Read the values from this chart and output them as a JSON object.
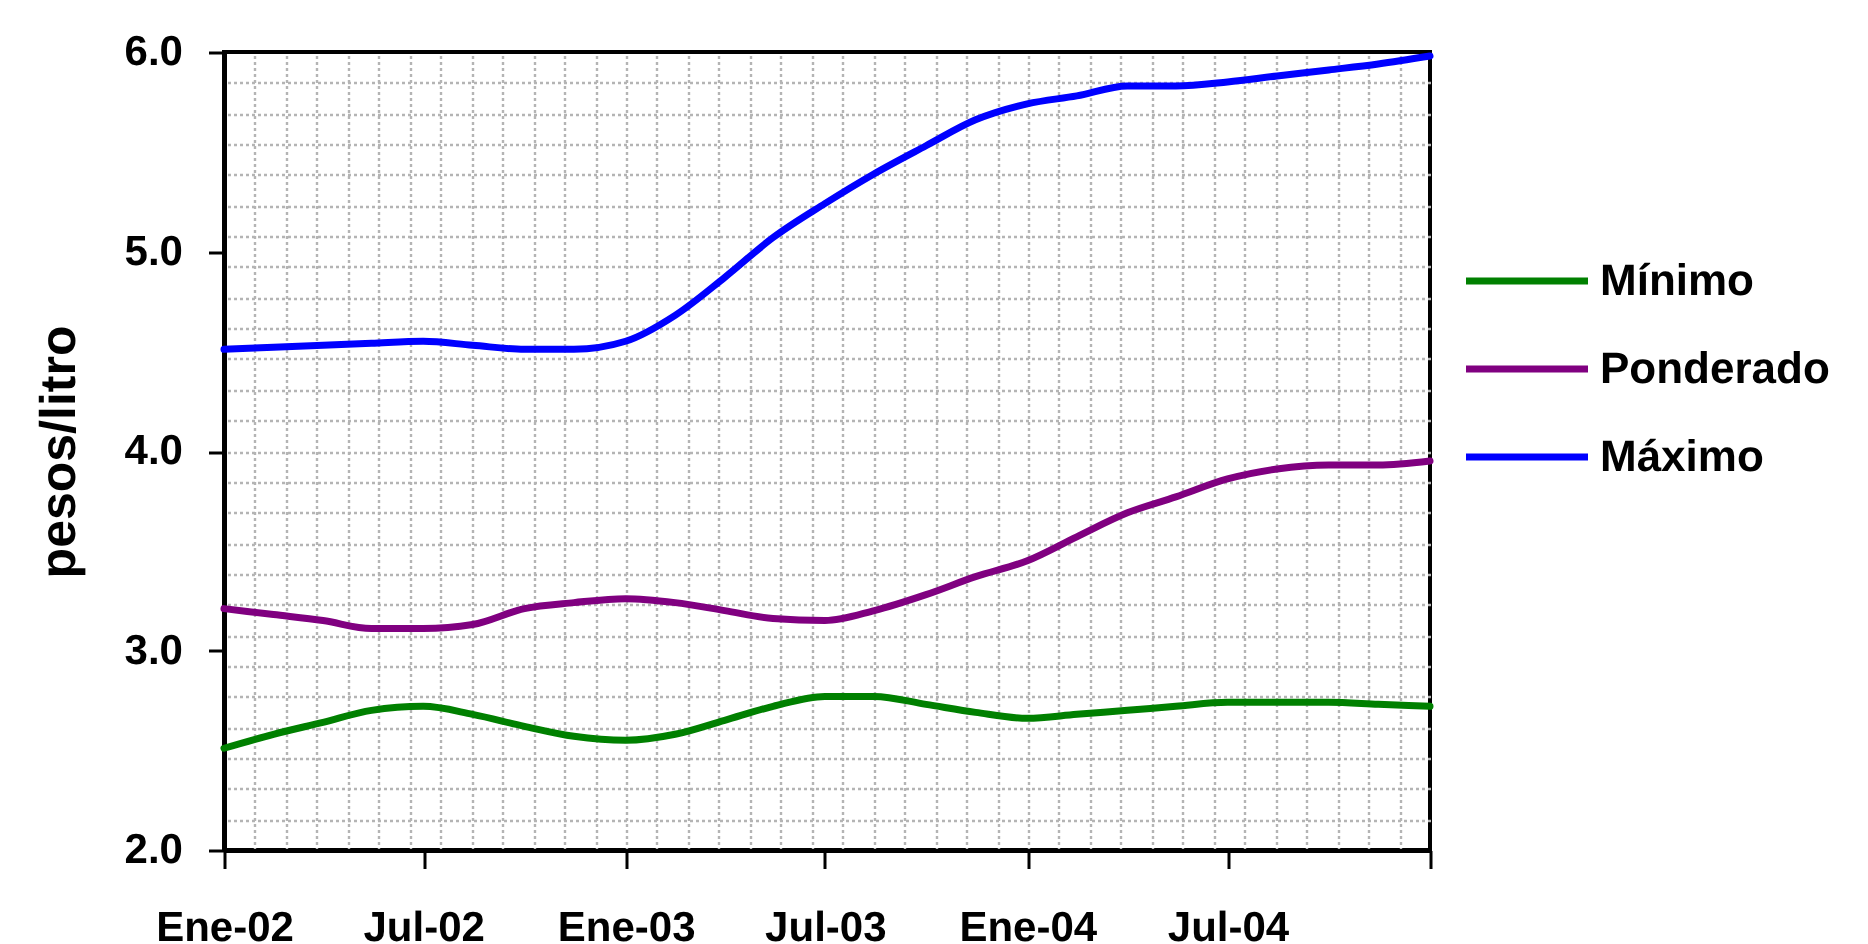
{
  "chart_data": {
    "type": "line",
    "ylabel": "pesos/litro",
    "x": [
      "2002-01-01",
      "2002-02-15",
      "2002-04-01",
      "2002-05-15",
      "2002-07-01",
      "2002-08-15",
      "2002-10-01",
      "2002-11-15",
      "2003-01-01",
      "2003-02-15",
      "2003-04-01",
      "2003-05-15",
      "2003-07-01",
      "2003-08-15",
      "2003-10-01",
      "2003-11-15",
      "2004-01-01",
      "2004-02-15",
      "2004-04-01",
      "2004-05-15",
      "2004-07-01",
      "2004-08-15",
      "2004-10-01",
      "2004-11-15",
      "2005-01-01"
    ],
    "xlim": [
      "2002-01-01",
      "2005-01-01"
    ],
    "xticks": [
      {
        "value": "2002-01-01",
        "label": "Ene-02"
      },
      {
        "value": "2002-07-01",
        "label": "Jul-02"
      },
      {
        "value": "2003-01-01",
        "label": "Ene-03"
      },
      {
        "value": "2003-07-01",
        "label": "Jul-03"
      },
      {
        "value": "2004-01-01",
        "label": "Ene-04"
      },
      {
        "value": "2004-07-01",
        "label": "Jul-04"
      },
      {
        "value": "2005-01-01",
        "label": null
      }
    ],
    "ylim": [
      2,
      6
    ],
    "yticks": [
      {
        "value": 2,
        "label": "2.0"
      },
      {
        "value": 3,
        "label": "3.0"
      },
      {
        "value": 4,
        "label": "4.0"
      },
      {
        "value": 5,
        "label": "5.0"
      },
      {
        "value": 6,
        "label": "6.0"
      }
    ],
    "grid": true,
    "legend": "right",
    "series": [
      {
        "name": "Mínimo",
        "color": "#008000",
        "values": [
          2.51,
          2.58,
          2.64,
          2.7,
          2.72,
          2.68,
          2.62,
          2.57,
          2.55,
          2.58,
          2.65,
          2.72,
          2.77,
          2.77,
          2.73,
          2.69,
          2.66,
          2.68,
          2.7,
          2.72,
          2.74,
          2.74,
          2.74,
          2.73,
          2.72
        ]
      },
      {
        "name": "Ponderado",
        "color": "#800080",
        "values": [
          3.21,
          3.18,
          3.15,
          3.11,
          3.11,
          3.13,
          3.21,
          3.24,
          3.26,
          3.24,
          3.2,
          3.16,
          3.15,
          3.2,
          3.28,
          3.37,
          3.45,
          3.57,
          3.69,
          3.77,
          3.86,
          3.91,
          3.93,
          3.93,
          3.95
        ]
      },
      {
        "name": "Máximo",
        "color": "#0000ff",
        "values": [
          4.51,
          4.52,
          4.53,
          4.54,
          4.55,
          4.53,
          4.51,
          4.51,
          4.55,
          4.68,
          4.87,
          5.07,
          5.24,
          5.39,
          5.53,
          5.66,
          5.74,
          5.78,
          5.83,
          5.83,
          5.85,
          5.88,
          5.91,
          5.94,
          5.98
        ]
      }
    ]
  }
}
